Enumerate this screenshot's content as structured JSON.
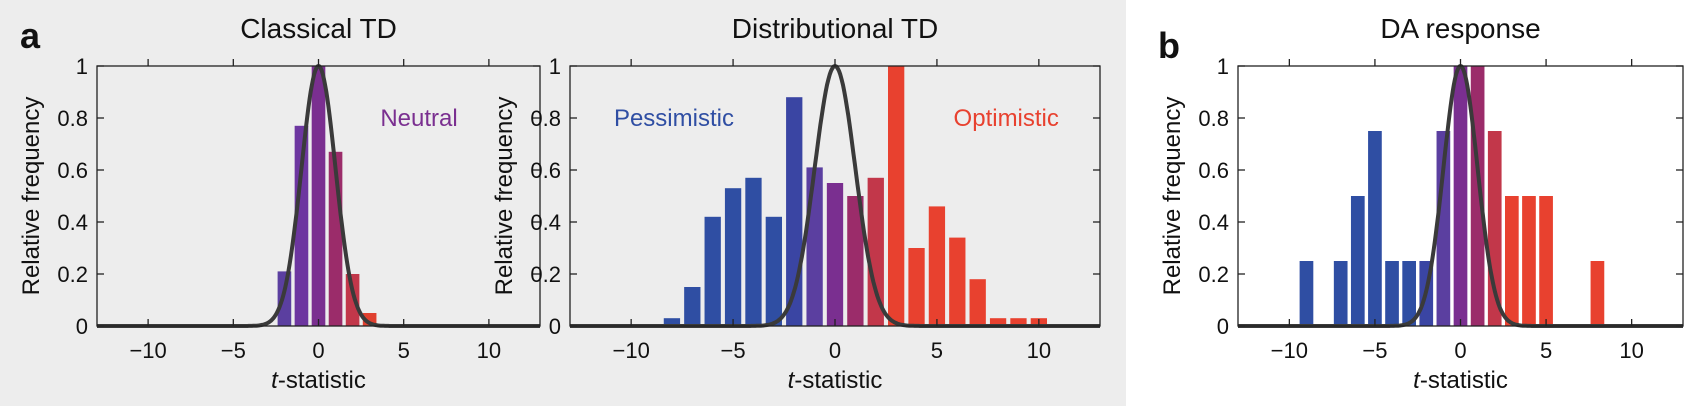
{
  "panel_letters": {
    "a": "a",
    "b": "b"
  },
  "colors": {
    "pessimistic": "#2f4ea3",
    "neutral": "#7a2f90",
    "optimistic": "#e8412f",
    "curve": "#3a3a3a",
    "panel_a_bg": "#ededed"
  },
  "chart_data": [
    {
      "type": "bar",
      "title": "Classical TD",
      "xlabel": "t-statistic",
      "xlabel_italic": "t",
      "xlabel_rest": "-statistic",
      "ylabel": "Relative frequency",
      "xlim": [
        -13,
        13
      ],
      "ylim": [
        0,
        1
      ],
      "xticks": [
        -10,
        -5,
        0,
        5,
        10
      ],
      "xtick_labels": [
        "−10",
        "−5",
        "0",
        "5",
        "10"
      ],
      "yticks": [
        0,
        0.2,
        0.4,
        0.6,
        0.8,
        1
      ],
      "ytick_labels": [
        "0",
        "0.2",
        "0.4",
        "0.6",
        "0.8",
        "1"
      ],
      "bar_width": 0.8,
      "bars": [
        {
          "x": -2.0,
          "value": 0.21,
          "color": "#5b3fa0"
        },
        {
          "x": -1.0,
          "value": 0.77,
          "color": "#6d36a0"
        },
        {
          "x": 0.0,
          "value": 1.0,
          "color": "#7a2f90"
        },
        {
          "x": 1.0,
          "value": 0.67,
          "color": "#9b2c6a"
        },
        {
          "x": 2.0,
          "value": 0.2,
          "color": "#c2374a"
        },
        {
          "x": 3.0,
          "value": 0.05,
          "color": "#e0402f"
        }
      ],
      "annotations": [
        {
          "text": "Neutral",
          "color": "#7a2f90",
          "x": 5.9,
          "y": 0.8
        }
      ],
      "curve": {
        "type": "gaussian",
        "mean": 0,
        "sd": 1.0,
        "peak": 1.0
      }
    },
    {
      "type": "bar",
      "title": "Distributional TD",
      "xlabel": "t-statistic",
      "xlabel_italic": "t",
      "xlabel_rest": "-statistic",
      "ylabel": "Relative frequency",
      "xlim": [
        -13,
        13
      ],
      "ylim": [
        0,
        1
      ],
      "xticks": [
        -10,
        -5,
        0,
        5,
        10
      ],
      "xtick_labels": [
        "−10",
        "−5",
        "0",
        "5",
        "10"
      ],
      "yticks": [
        0,
        0.2,
        0.4,
        0.6,
        0.8,
        1
      ],
      "ytick_labels": [
        "0",
        "0.2",
        "0.4",
        "0.6",
        "0.8",
        "1"
      ],
      "bar_width": 0.8,
      "bars": [
        {
          "x": -8.0,
          "value": 0.03,
          "color": "#2f4ea3"
        },
        {
          "x": -7.0,
          "value": 0.15,
          "color": "#2f4ea3"
        },
        {
          "x": -6.0,
          "value": 0.42,
          "color": "#2f4ea3"
        },
        {
          "x": -5.0,
          "value": 0.53,
          "color": "#2f4ea3"
        },
        {
          "x": -4.0,
          "value": 0.57,
          "color": "#2f4ea3"
        },
        {
          "x": -3.0,
          "value": 0.42,
          "color": "#2f4ea3"
        },
        {
          "x": -2.0,
          "value": 0.88,
          "color": "#3a45a3"
        },
        {
          "x": -1.0,
          "value": 0.61,
          "color": "#5b3fa0"
        },
        {
          "x": 0.0,
          "value": 0.55,
          "color": "#7a2f90"
        },
        {
          "x": 1.0,
          "value": 0.5,
          "color": "#9b2c6a"
        },
        {
          "x": 2.0,
          "value": 0.57,
          "color": "#c2374a"
        },
        {
          "x": 3.0,
          "value": 1.0,
          "color": "#e8412f"
        },
        {
          "x": 4.0,
          "value": 0.3,
          "color": "#e8412f"
        },
        {
          "x": 5.0,
          "value": 0.46,
          "color": "#e8412f"
        },
        {
          "x": 6.0,
          "value": 0.34,
          "color": "#e8412f"
        },
        {
          "x": 7.0,
          "value": 0.18,
          "color": "#e8412f"
        },
        {
          "x": 8.0,
          "value": 0.03,
          "color": "#e8412f"
        },
        {
          "x": 9.0,
          "value": 0.03,
          "color": "#e8412f"
        },
        {
          "x": 10.0,
          "value": 0.03,
          "color": "#e8412f"
        }
      ],
      "annotations": [
        {
          "text": "Pessimistic",
          "color": "#2f4ea3",
          "x": -7.9,
          "y": 0.8
        },
        {
          "text": "Optimistic",
          "color": "#e8412f",
          "x": 8.4,
          "y": 0.8
        }
      ],
      "curve": {
        "type": "gaussian",
        "mean": 0,
        "sd": 1.0,
        "peak": 1.0
      }
    },
    {
      "type": "bar",
      "title": "DA response",
      "xlabel": "t-statistic",
      "xlabel_italic": "t",
      "xlabel_rest": "-statistic",
      "ylabel": "Relative frequency",
      "xlim": [
        -13,
        13
      ],
      "ylim": [
        0,
        1
      ],
      "xticks": [
        -10,
        -5,
        0,
        5,
        10
      ],
      "xtick_labels": [
        "−10",
        "−5",
        "0",
        "5",
        "10"
      ],
      "yticks": [
        0,
        0.2,
        0.4,
        0.6,
        0.8,
        1
      ],
      "ytick_labels": [
        "0",
        "0.2",
        "0.4",
        "0.6",
        "0.8",
        "1"
      ],
      "bar_width": 0.8,
      "bars": [
        {
          "x": -9.0,
          "value": 0.25,
          "color": "#2f4ea3"
        },
        {
          "x": -7.0,
          "value": 0.25,
          "color": "#2f4ea3"
        },
        {
          "x": -6.0,
          "value": 0.5,
          "color": "#2f4ea3"
        },
        {
          "x": -5.0,
          "value": 0.75,
          "color": "#2f4ea3"
        },
        {
          "x": -4.0,
          "value": 0.25,
          "color": "#2f4ea3"
        },
        {
          "x": -3.0,
          "value": 0.25,
          "color": "#2f4ea3"
        },
        {
          "x": -2.0,
          "value": 0.25,
          "color": "#3a45a3"
        },
        {
          "x": -1.0,
          "value": 0.75,
          "color": "#5b3fa0"
        },
        {
          "x": 0.0,
          "value": 1.0,
          "color": "#7a2f90"
        },
        {
          "x": 1.0,
          "value": 1.0,
          "color": "#9b2c6a"
        },
        {
          "x": 2.0,
          "value": 0.75,
          "color": "#c2374a"
        },
        {
          "x": 3.0,
          "value": 0.5,
          "color": "#e8412f"
        },
        {
          "x": 4.0,
          "value": 0.5,
          "color": "#e8412f"
        },
        {
          "x": 5.0,
          "value": 0.5,
          "color": "#e8412f"
        },
        {
          "x": 8.0,
          "value": 0.25,
          "color": "#e8412f"
        }
      ],
      "annotations": [],
      "curve": {
        "type": "gaussian",
        "mean": 0,
        "sd": 1.0,
        "peak": 1.0
      }
    }
  ]
}
